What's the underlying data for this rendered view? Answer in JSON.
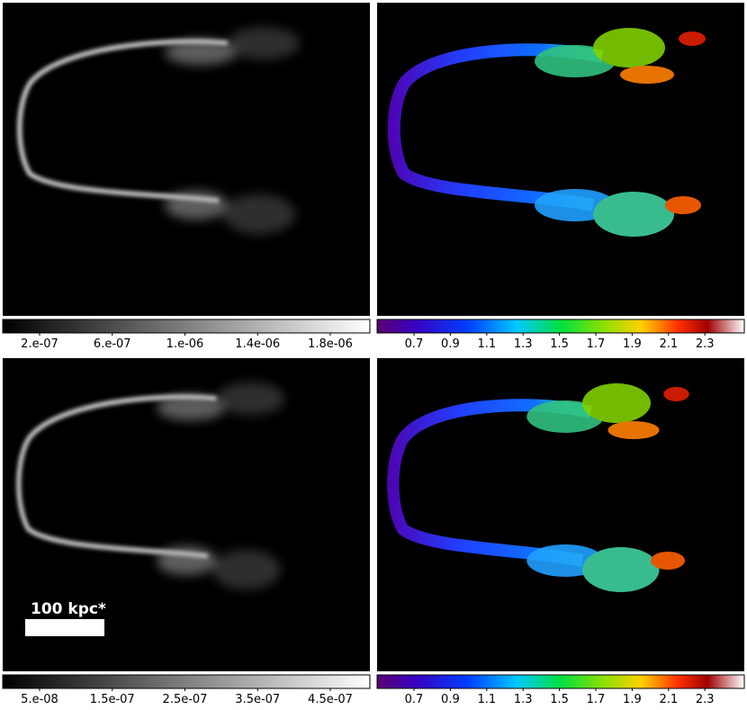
{
  "panels": [
    {
      "colorbar": {
        "ticks": [
          "2.e-07",
          "6.e-07",
          "1.e-06",
          "1.4e-06",
          "1.8e-06"
        ]
      }
    },
    {
      "colorbar": {
        "ticks": [
          "0.7",
          "0.9",
          "1.1",
          "1.3",
          "1.5",
          "1.7",
          "1.9",
          "2.1",
          "2.3"
        ]
      }
    },
    {
      "colorbar": {
        "ticks": [
          "5.e-08",
          "1.5e-07",
          "2.5e-07",
          "3.5e-07",
          "4.5e-07"
        ]
      }
    },
    {
      "colorbar": {
        "ticks": [
          "0.7",
          "0.9",
          "1.1",
          "1.3",
          "1.5",
          "1.7",
          "1.9",
          "2.1",
          "2.3"
        ]
      }
    }
  ],
  "scale_bar": {
    "label": "100 kpc*"
  }
}
